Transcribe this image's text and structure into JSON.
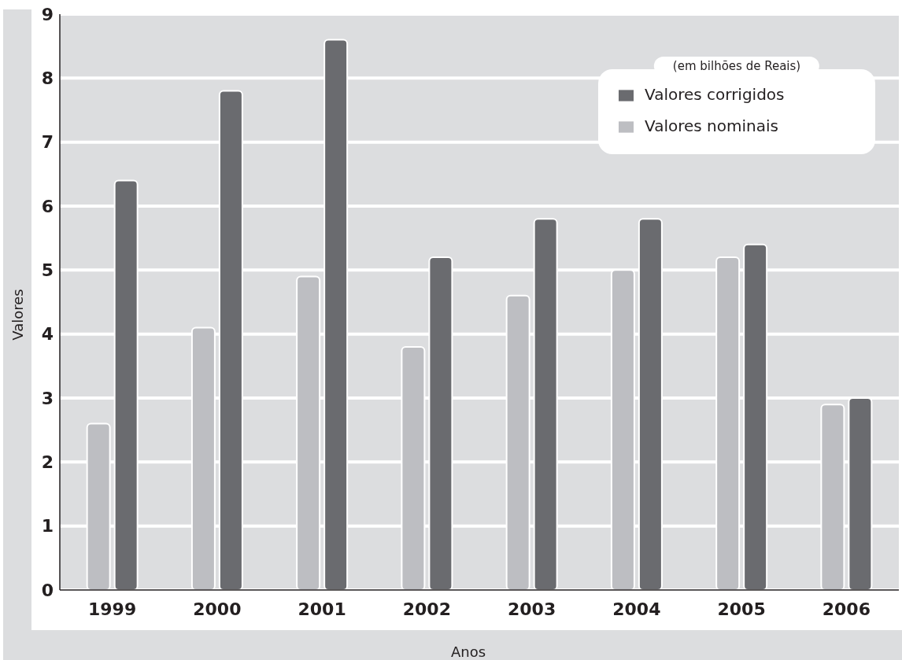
{
  "chart_data": {
    "type": "bar",
    "xlabel": "Anos",
    "ylabel": "Valores",
    "legend_title": "(em bilhões de Reais)",
    "categories": [
      "1999",
      "2000",
      "2001",
      "2002",
      "2003",
      "2004",
      "2005",
      "2006"
    ],
    "series": [
      {
        "name": "Valores nominais",
        "color": "#bdbec2",
        "values": [
          2.6,
          4.1,
          4.9,
          3.8,
          4.6,
          5.0,
          5.2,
          2.9
        ]
      },
      {
        "name": "Valores corrigidos",
        "color": "#6a6b6f",
        "values": [
          6.4,
          7.8,
          8.6,
          5.2,
          5.8,
          5.8,
          5.4,
          3.0
        ]
      }
    ],
    "ylim": [
      0,
      9
    ],
    "yticks": [
      0,
      1,
      2,
      3,
      4,
      5,
      6,
      7,
      8,
      9
    ],
    "grid": "y",
    "legend": "top right"
  }
}
